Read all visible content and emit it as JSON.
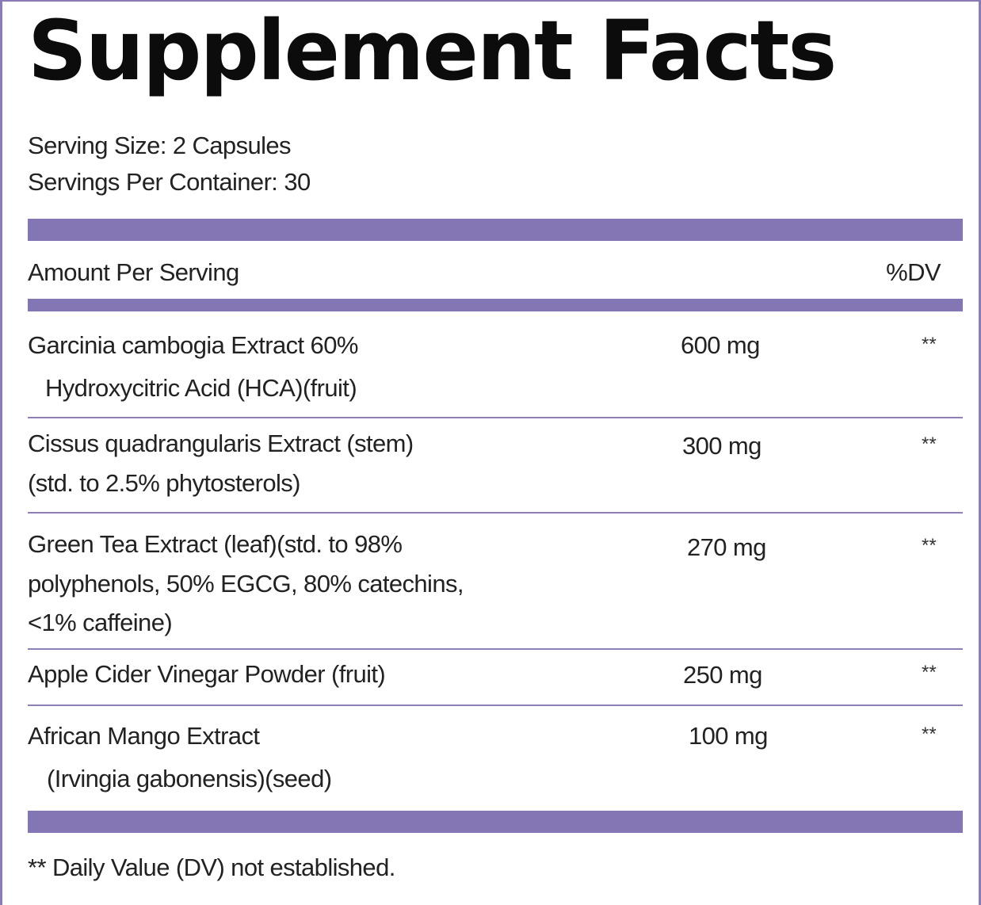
{
  "title": "Supplement Facts",
  "serving_size": "Serving Size: 2 Capsules",
  "servings_per_container": "Servings Per Container: 30",
  "header": {
    "amount_per_serving": "Amount Per Serving",
    "dv": "%DV"
  },
  "ingredients": [
    {
      "line1": "Garcinia cambogia Extract 60%",
      "line2": "Hydroxycitric Acid (HCA)(fruit)",
      "amount": "600 mg",
      "dv": "**"
    },
    {
      "line1": "Cissus quadrangularis Extract (stem)",
      "line2": "(std. to 2.5% phytosterols)",
      "amount": "300 mg",
      "dv": "**"
    },
    {
      "line1": "Green Tea Extract (leaf)(std. to 98%",
      "line2": "polyphenols, 50% EGCG, 80% catechins,",
      "line3": "<1% caffeine)",
      "amount": "270 mg",
      "dv": "**"
    },
    {
      "line1": "Apple Cider Vinegar Powder (fruit)",
      "amount": "250 mg",
      "dv": "**"
    },
    {
      "line1": "African Mango Extract",
      "line2": "(Irvingia gabonensis)(seed)",
      "amount": "100 mg",
      "dv": "**"
    }
  ],
  "footnote": "** Daily Value (DV) not established."
}
